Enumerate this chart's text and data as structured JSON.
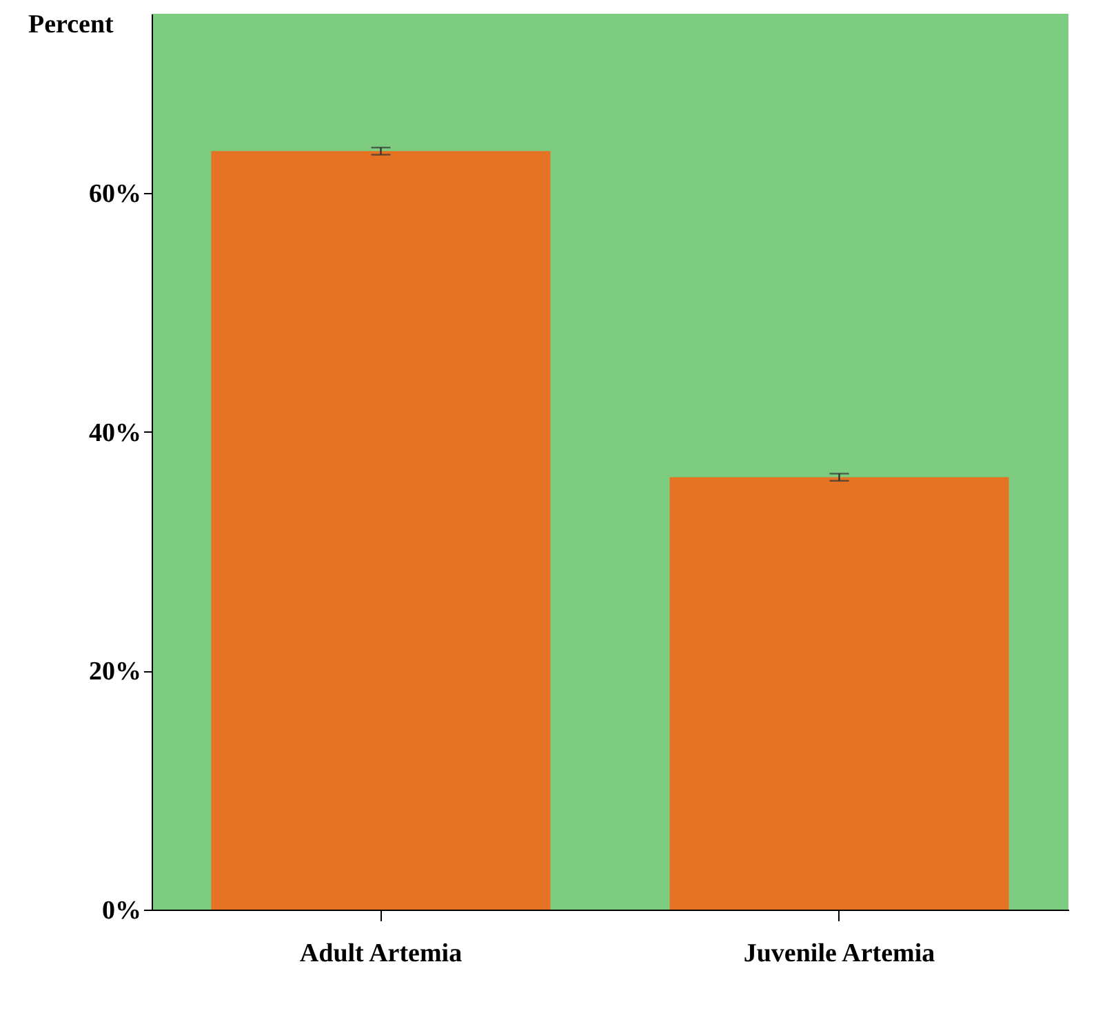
{
  "chart_data": {
    "type": "bar",
    "ylabel": "Percent",
    "categories": [
      "Adult Artemia",
      "Juvenile Artemia"
    ],
    "values": [
      63.5,
      36.2
    ],
    "errors": [
      0.3,
      0.3
    ],
    "color": "#e67224",
    "ylim": [
      0,
      75
    ],
    "yticks": [
      {
        "value": 0,
        "label": "0%"
      },
      {
        "value": 20,
        "label": "20%"
      },
      {
        "value": 40,
        "label": "40%"
      },
      {
        "value": 60,
        "label": "60%"
      }
    ],
    "grid": false
  }
}
